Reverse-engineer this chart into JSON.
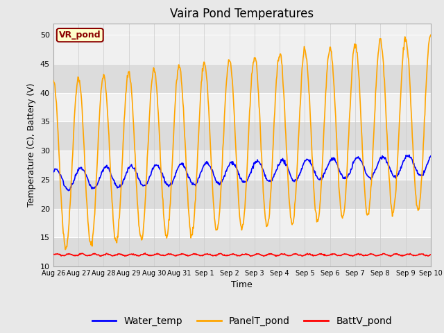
{
  "title": "Vaira Pond Temperatures",
  "xlabel": "Time",
  "ylabel": "Temperature (C), Battery (V)",
  "ylim": [
    10,
    52
  ],
  "yticks": [
    10,
    15,
    20,
    25,
    30,
    35,
    40,
    45,
    50
  ],
  "xtick_labels": [
    "Aug 26",
    "Aug 27",
    "Aug 28",
    "Aug 29",
    "Aug 30",
    "Aug 31",
    "Sep 1",
    "Sep 2",
    "Sep 3",
    "Sep 4",
    "Sep 5",
    "Sep 6",
    "Sep 7",
    "Sep 8",
    "Sep 9",
    "Sep 10"
  ],
  "water_color": "#0000ff",
  "panel_color": "#ffa500",
  "batt_color": "#ff0000",
  "bg_color": "#e8e8e8",
  "band_light": "#f0f0f0",
  "band_dark": "#dcdcdc",
  "legend_label": "VR_pond",
  "title_fontsize": 12,
  "axis_fontsize": 9,
  "tick_fontsize": 8,
  "legend_fontsize": 10
}
